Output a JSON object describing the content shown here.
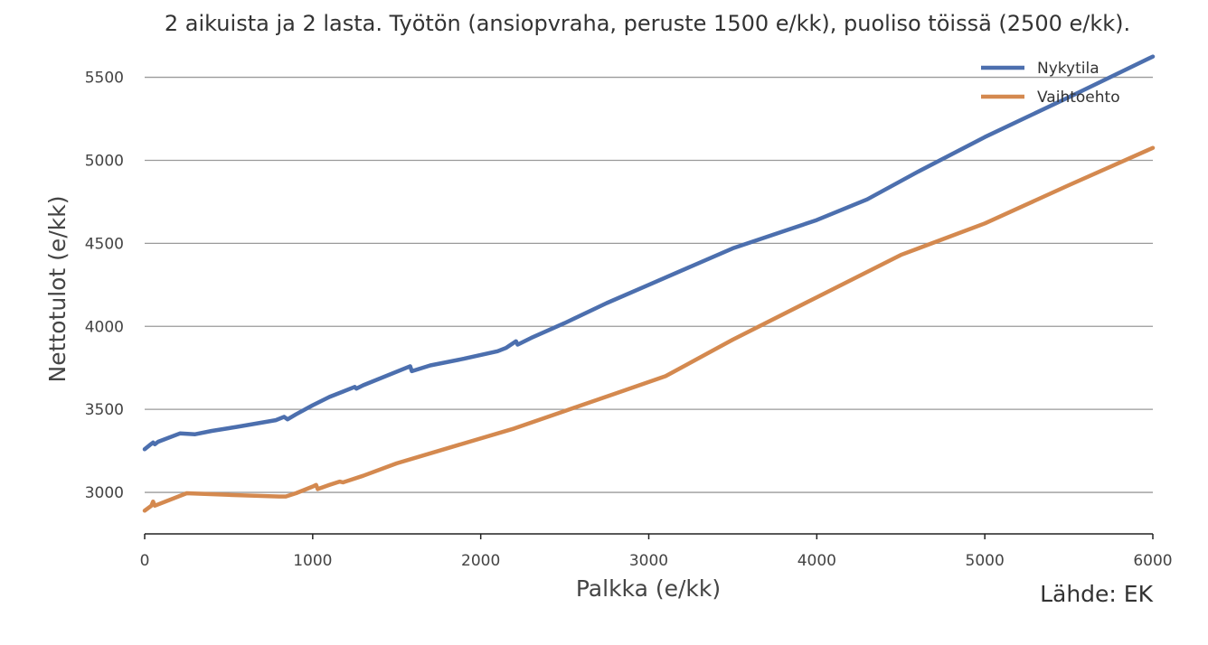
{
  "chart_data": {
    "type": "line",
    "title": "2 aikuista ja 2 lasta. Työtön (ansiopvraha, peruste 1500 e/kk), puoliso töissä (2500 e/kk).",
    "xlabel": "Palkka (e/kk)",
    "ylabel": "Nettotulot (e/kk)",
    "source": "Lähde: EK",
    "xlim": [
      0,
      6000
    ],
    "ylim": [
      2750,
      5650
    ],
    "xticks": [
      0,
      1000,
      2000,
      3000,
      4000,
      5000,
      6000
    ],
    "yticks": [
      3000,
      3500,
      4000,
      4500,
      5000,
      5500
    ],
    "grid": "horizontal",
    "legend_position": "top-right",
    "series": [
      {
        "name": "Nykytila",
        "color": "#4c6fae",
        "points": [
          [
            0,
            3260
          ],
          [
            30,
            3285
          ],
          [
            50,
            3300
          ],
          [
            60,
            3290
          ],
          [
            80,
            3305
          ],
          [
            210,
            3355
          ],
          [
            300,
            3350
          ],
          [
            400,
            3370
          ],
          [
            550,
            3395
          ],
          [
            780,
            3435
          ],
          [
            830,
            3455
          ],
          [
            850,
            3440
          ],
          [
            900,
            3470
          ],
          [
            1000,
            3525
          ],
          [
            1100,
            3575
          ],
          [
            1250,
            3635
          ],
          [
            1260,
            3625
          ],
          [
            1300,
            3645
          ],
          [
            1580,
            3760
          ],
          [
            1590,
            3730
          ],
          [
            1700,
            3765
          ],
          [
            1900,
            3805
          ],
          [
            2100,
            3850
          ],
          [
            2150,
            3870
          ],
          [
            2210,
            3910
          ],
          [
            2220,
            3890
          ],
          [
            2300,
            3930
          ],
          [
            2500,
            4020
          ],
          [
            2750,
            4140
          ],
          [
            3000,
            4250
          ],
          [
            3500,
            4470
          ],
          [
            4000,
            4640
          ],
          [
            4300,
            4765
          ],
          [
            4600,
            4930
          ],
          [
            5000,
            5140
          ],
          [
            5500,
            5380
          ],
          [
            6000,
            5625
          ]
        ]
      },
      {
        "name": "Vaihtoehto",
        "color": "#d4894f",
        "points": [
          [
            0,
            2890
          ],
          [
            40,
            2920
          ],
          [
            50,
            2945
          ],
          [
            60,
            2920
          ],
          [
            250,
            2995
          ],
          [
            500,
            2985
          ],
          [
            800,
            2975
          ],
          [
            840,
            2975
          ],
          [
            900,
            2995
          ],
          [
            1000,
            3035
          ],
          [
            1020,
            3045
          ],
          [
            1030,
            3020
          ],
          [
            1100,
            3045
          ],
          [
            1160,
            3065
          ],
          [
            1180,
            3060
          ],
          [
            1300,
            3100
          ],
          [
            1500,
            3175
          ],
          [
            1800,
            3265
          ],
          [
            2200,
            3385
          ],
          [
            2500,
            3490
          ],
          [
            2800,
            3595
          ],
          [
            3100,
            3700
          ],
          [
            3500,
            3920
          ],
          [
            4000,
            4175
          ],
          [
            4500,
            4430
          ],
          [
            5000,
            4620
          ],
          [
            5500,
            4850
          ],
          [
            6000,
            5075
          ]
        ]
      }
    ]
  }
}
